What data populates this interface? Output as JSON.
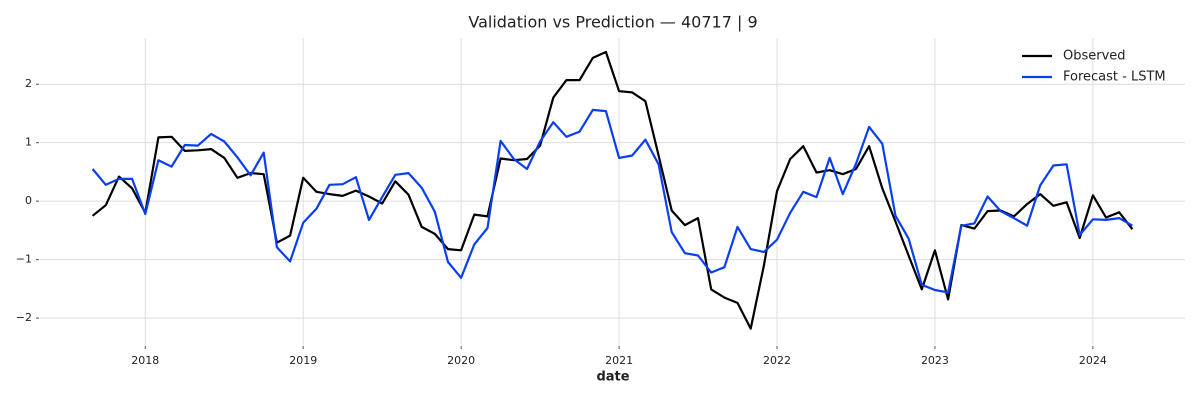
{
  "chart_data": {
    "type": "line",
    "title": "Validation vs Prediction — 40717 | 9",
    "x_label": "date",
    "x": [
      "2017-09",
      "2017-10",
      "2017-11",
      "2017-12",
      "2018-01",
      "2018-02",
      "2018-03",
      "2018-04",
      "2018-05",
      "2018-06",
      "2018-07",
      "2018-08",
      "2018-09",
      "2018-10",
      "2018-11",
      "2018-12",
      "2019-01",
      "2019-02",
      "2019-03",
      "2019-04",
      "2019-05",
      "2019-06",
      "2019-07",
      "2019-08",
      "2019-09",
      "2019-10",
      "2019-11",
      "2019-12",
      "2020-01",
      "2020-02",
      "2020-03",
      "2020-04",
      "2020-05",
      "2020-06",
      "2020-07",
      "2020-08",
      "2020-09",
      "2020-10",
      "2020-11",
      "2020-12",
      "2021-01",
      "2021-02",
      "2021-03",
      "2021-04",
      "2021-05",
      "2021-06",
      "2021-07",
      "2021-08",
      "2021-09",
      "2021-10",
      "2021-11",
      "2021-12",
      "2022-01",
      "2022-02",
      "2022-03",
      "2022-04",
      "2022-05",
      "2022-06",
      "2022-07",
      "2022-08",
      "2022-09",
      "2022-10",
      "2022-11",
      "2022-12",
      "2023-01",
      "2023-02",
      "2023-03",
      "2023-04",
      "2023-05",
      "2023-06",
      "2023-07",
      "2023-08",
      "2023-09",
      "2023-10",
      "2023-11",
      "2023-12",
      "2024-01",
      "2024-02",
      "2024-03",
      "2024-04"
    ],
    "series": [
      {
        "name": "Observed",
        "color": "#000000",
        "values": [
          -0.25,
          -0.07,
          0.42,
          0.22,
          -0.2,
          1.09,
          1.1,
          0.86,
          0.87,
          0.89,
          0.74,
          0.4,
          0.48,
          0.46,
          -0.71,
          -0.59,
          0.4,
          0.16,
          0.12,
          0.09,
          0.18,
          0.08,
          -0.04,
          0.34,
          0.11,
          -0.44,
          -0.56,
          -0.82,
          -0.84,
          -0.23,
          -0.26,
          0.73,
          0.7,
          0.72,
          0.95,
          1.77,
          2.07,
          2.07,
          2.45,
          2.55,
          1.88,
          1.86,
          1.71,
          0.78,
          -0.16,
          -0.41,
          -0.29,
          -1.51,
          -1.65,
          -1.74,
          -2.18,
          -1.1,
          0.17,
          0.72,
          0.94,
          0.49,
          0.53,
          0.46,
          0.55,
          0.94,
          0.22,
          -0.35,
          -0.93,
          -1.51,
          -0.84,
          -1.68,
          -0.41,
          -0.47,
          -0.17,
          -0.16,
          -0.26,
          -0.05,
          0.12,
          -0.08,
          -0.02,
          -0.63,
          0.1,
          -0.28,
          -0.19,
          -0.48
        ]
      },
      {
        "name": "Forecast - LSTM",
        "color": "#0a3ff0",
        "values": [
          0.55,
          0.28,
          0.38,
          0.38,
          -0.22,
          0.7,
          0.59,
          0.96,
          0.95,
          1.15,
          1.02,
          0.75,
          0.44,
          0.83,
          -0.79,
          -1.03,
          -0.37,
          -0.13,
          0.28,
          0.29,
          0.41,
          -0.32,
          0.07,
          0.45,
          0.48,
          0.23,
          -0.18,
          -1.04,
          -1.31,
          -0.74,
          -0.46,
          1.03,
          0.72,
          0.55,
          1.02,
          1.35,
          1.1,
          1.19,
          1.56,
          1.54,
          0.74,
          0.78,
          1.05,
          0.63,
          -0.53,
          -0.89,
          -0.93,
          -1.22,
          -1.13,
          -0.44,
          -0.82,
          -0.87,
          -0.66,
          -0.2,
          0.16,
          0.07,
          0.74,
          0.12,
          0.64,
          1.27,
          0.98,
          -0.25,
          -0.64,
          -1.43,
          -1.52,
          -1.56,
          -0.42,
          -0.38,
          0.08,
          -0.17,
          -0.29,
          -0.42,
          0.27,
          0.61,
          0.63,
          -0.58,
          -0.31,
          -0.32,
          -0.29,
          -0.42
        ]
      }
    ],
    "xlim": [
      "2017-05",
      "2024-08"
    ],
    "xticks": [
      {
        "value": "2018-01",
        "label": "2018"
      },
      {
        "value": "2019-01",
        "label": "2019"
      },
      {
        "value": "2020-01",
        "label": "2020"
      },
      {
        "value": "2021-01",
        "label": "2021"
      },
      {
        "value": "2022-01",
        "label": "2022"
      },
      {
        "value": "2023-01",
        "label": "2023"
      },
      {
        "value": "2024-01",
        "label": "2024"
      }
    ],
    "ylim": [
      -2.46,
      2.79
    ],
    "yticks": [
      {
        "value": -2,
        "label": "−2"
      },
      {
        "value": -1,
        "label": "−1"
      },
      0,
      1,
      2
    ],
    "grid": true,
    "legend": "upper right"
  }
}
